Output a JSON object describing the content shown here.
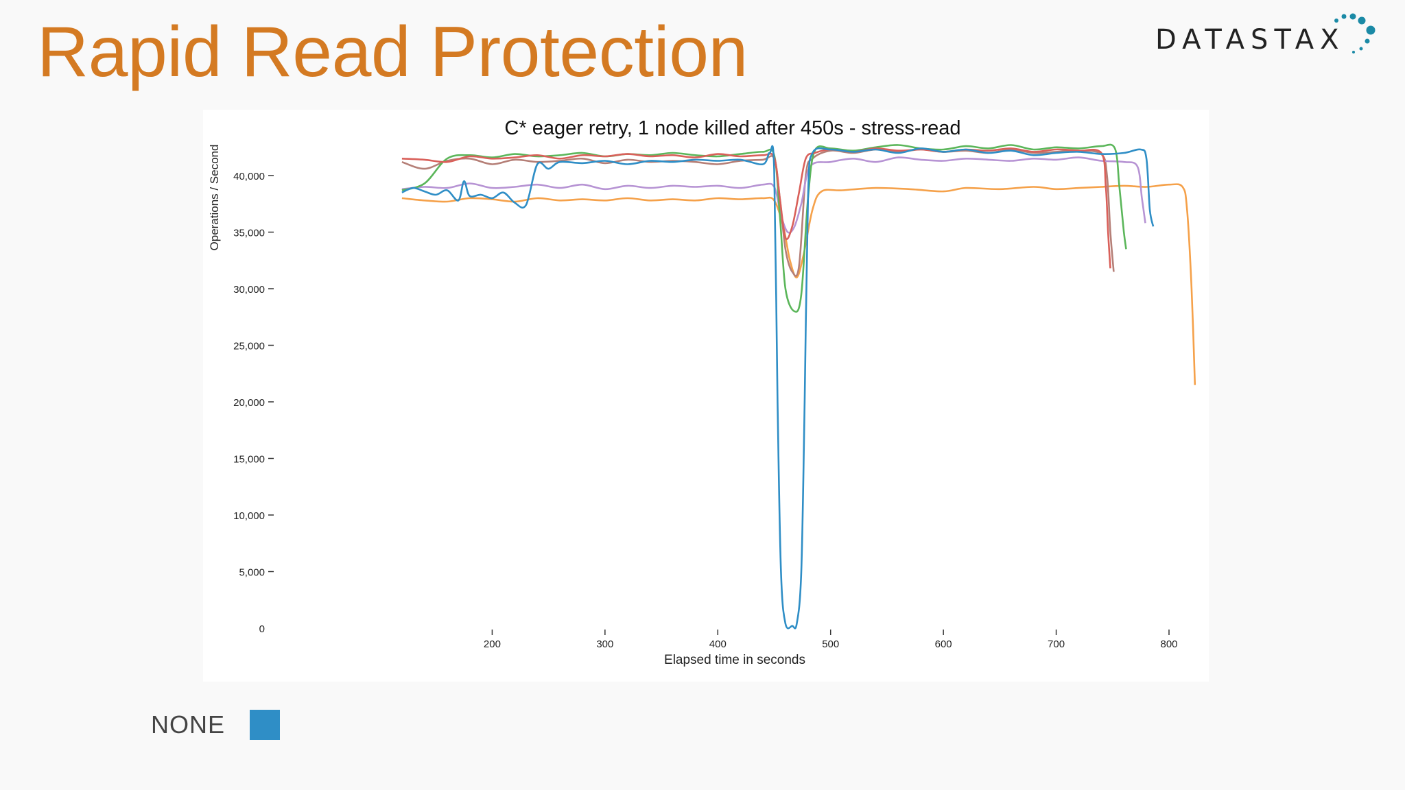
{
  "slide": {
    "title": "Rapid Read Protection"
  },
  "logo": {
    "text": "DATASTAX",
    "accent_color": "#1b8aa6"
  },
  "legend": {
    "label": "NONE",
    "color": "#2f8ec6"
  },
  "chart_data": {
    "type": "line",
    "title": "C* eager retry, 1 node killed after 450s - stress-read",
    "xlabel": "Elapsed time in seconds",
    "ylabel": "Operations / Second",
    "xlim": [
      120,
      830
    ],
    "ylim": [
      0,
      43500
    ],
    "x_ticks": [
      200,
      300,
      400,
      500,
      600,
      700,
      800
    ],
    "y_ticks": [
      0,
      5000,
      10000,
      15000,
      20000,
      25000,
      30000,
      35000,
      40000
    ],
    "x_tick_labels": [
      "200",
      "300",
      "400",
      "500",
      "600",
      "700",
      "800"
    ],
    "y_tick_labels": [
      "0",
      "5,000",
      "10,000",
      "15,000",
      "20,000",
      "25,000",
      "30,000",
      "35,000",
      "40,000"
    ],
    "grid": false,
    "series": [
      {
        "color": "#f5a14a",
        "points": [
          [
            120,
            38000
          ],
          [
            140,
            37800
          ],
          [
            160,
            37700
          ],
          [
            180,
            38000
          ],
          [
            200,
            37900
          ],
          [
            220,
            37700
          ],
          [
            240,
            38000
          ],
          [
            260,
            37800
          ],
          [
            280,
            37900
          ],
          [
            300,
            37800
          ],
          [
            320,
            38000
          ],
          [
            340,
            37800
          ],
          [
            360,
            37900
          ],
          [
            380,
            37800
          ],
          [
            400,
            38000
          ],
          [
            420,
            37900
          ],
          [
            440,
            38000
          ],
          [
            450,
            37800
          ],
          [
            458,
            35500
          ],
          [
            464,
            32500
          ],
          [
            470,
            31000
          ],
          [
            476,
            33000
          ],
          [
            484,
            37000
          ],
          [
            492,
            38600
          ],
          [
            510,
            38700
          ],
          [
            540,
            38900
          ],
          [
            570,
            38800
          ],
          [
            600,
            38600
          ],
          [
            620,
            38900
          ],
          [
            650,
            38800
          ],
          [
            680,
            39000
          ],
          [
            700,
            38800
          ],
          [
            720,
            38900
          ],
          [
            740,
            39000
          ],
          [
            760,
            39100
          ],
          [
            780,
            39000
          ],
          [
            800,
            39200
          ],
          [
            812,
            39000
          ],
          [
            816,
            37000
          ],
          [
            820,
            30000
          ],
          [
            823,
            21500
          ]
        ]
      },
      {
        "color": "#b57f77",
        "points": [
          [
            120,
            41200
          ],
          [
            140,
            40600
          ],
          [
            160,
            41300
          ],
          [
            180,
            41500
          ],
          [
            200,
            41000
          ],
          [
            220,
            41400
          ],
          [
            240,
            41200
          ],
          [
            260,
            41300
          ],
          [
            280,
            41500
          ],
          [
            300,
            41100
          ],
          [
            320,
            41400
          ],
          [
            340,
            41200
          ],
          [
            360,
            41300
          ],
          [
            380,
            41200
          ],
          [
            400,
            41000
          ],
          [
            420,
            41300
          ],
          [
            440,
            41400
          ],
          [
            450,
            41500
          ],
          [
            455,
            38000
          ],
          [
            460,
            33500
          ],
          [
            466,
            31500
          ],
          [
            472,
            32000
          ],
          [
            478,
            40000
          ],
          [
            484,
            41500
          ],
          [
            500,
            42200
          ],
          [
            520,
            42000
          ],
          [
            540,
            42300
          ],
          [
            560,
            42100
          ],
          [
            580,
            42300
          ],
          [
            600,
            42100
          ],
          [
            620,
            42200
          ],
          [
            640,
            42000
          ],
          [
            660,
            42300
          ],
          [
            680,
            42000
          ],
          [
            700,
            42100
          ],
          [
            720,
            42200
          ],
          [
            740,
            41900
          ],
          [
            745,
            40000
          ],
          [
            748,
            35000
          ],
          [
            751,
            31500
          ]
        ]
      },
      {
        "color": "#b794d4",
        "points": [
          [
            120,
            38800
          ],
          [
            140,
            39000
          ],
          [
            160,
            38900
          ],
          [
            180,
            39300
          ],
          [
            200,
            38900
          ],
          [
            220,
            39000
          ],
          [
            240,
            39200
          ],
          [
            260,
            38900
          ],
          [
            280,
            39200
          ],
          [
            300,
            38800
          ],
          [
            320,
            39100
          ],
          [
            340,
            38900
          ],
          [
            360,
            39100
          ],
          [
            380,
            39000
          ],
          [
            400,
            39100
          ],
          [
            420,
            38900
          ],
          [
            440,
            39200
          ],
          [
            450,
            39000
          ],
          [
            456,
            36500
          ],
          [
            462,
            35000
          ],
          [
            468,
            35500
          ],
          [
            474,
            37500
          ],
          [
            482,
            40800
          ],
          [
            500,
            41200
          ],
          [
            520,
            41500
          ],
          [
            540,
            41200
          ],
          [
            560,
            41600
          ],
          [
            580,
            41400
          ],
          [
            600,
            41300
          ],
          [
            620,
            41500
          ],
          [
            640,
            41400
          ],
          [
            660,
            41300
          ],
          [
            680,
            41500
          ],
          [
            700,
            41400
          ],
          [
            720,
            41600
          ],
          [
            740,
            41300
          ],
          [
            760,
            41200
          ],
          [
            772,
            40800
          ],
          [
            776,
            38000
          ],
          [
            779,
            35800
          ]
        ]
      },
      {
        "color": "#5bb65a",
        "points": [
          [
            120,
            38700
          ],
          [
            140,
            39300
          ],
          [
            160,
            41500
          ],
          [
            180,
            41800
          ],
          [
            200,
            41600
          ],
          [
            220,
            41900
          ],
          [
            240,
            41700
          ],
          [
            260,
            41800
          ],
          [
            280,
            42000
          ],
          [
            300,
            41700
          ],
          [
            320,
            41900
          ],
          [
            340,
            41800
          ],
          [
            360,
            42000
          ],
          [
            380,
            41800
          ],
          [
            400,
            41700
          ],
          [
            420,
            41900
          ],
          [
            440,
            42100
          ],
          [
            450,
            41800
          ],
          [
            455,
            36500
          ],
          [
            460,
            30000
          ],
          [
            468,
            28000
          ],
          [
            474,
            29500
          ],
          [
            480,
            38000
          ],
          [
            486,
            42200
          ],
          [
            500,
            42400
          ],
          [
            520,
            42200
          ],
          [
            540,
            42500
          ],
          [
            560,
            42700
          ],
          [
            580,
            42400
          ],
          [
            600,
            42300
          ],
          [
            620,
            42600
          ],
          [
            640,
            42400
          ],
          [
            660,
            42700
          ],
          [
            680,
            42300
          ],
          [
            700,
            42500
          ],
          [
            720,
            42400
          ],
          [
            740,
            42600
          ],
          [
            752,
            42400
          ],
          [
            756,
            39000
          ],
          [
            760,
            35000
          ],
          [
            762,
            33500
          ]
        ]
      },
      {
        "color": "#d9605a",
        "points": [
          [
            120,
            41500
          ],
          [
            140,
            41400
          ],
          [
            160,
            41200
          ],
          [
            180,
            41700
          ],
          [
            200,
            41500
          ],
          [
            220,
            41600
          ],
          [
            240,
            41800
          ],
          [
            260,
            41500
          ],
          [
            280,
            41800
          ],
          [
            300,
            41700
          ],
          [
            320,
            41900
          ],
          [
            340,
            41700
          ],
          [
            360,
            41800
          ],
          [
            380,
            41600
          ],
          [
            400,
            41900
          ],
          [
            420,
            41700
          ],
          [
            440,
            41800
          ],
          [
            450,
            41600
          ],
          [
            455,
            38000
          ],
          [
            460,
            34500
          ],
          [
            466,
            35500
          ],
          [
            472,
            38500
          ],
          [
            478,
            41500
          ],
          [
            486,
            42000
          ],
          [
            500,
            42300
          ],
          [
            520,
            42100
          ],
          [
            540,
            42400
          ],
          [
            560,
            42200
          ],
          [
            580,
            42300
          ],
          [
            600,
            42100
          ],
          [
            620,
            42300
          ],
          [
            640,
            42200
          ],
          [
            660,
            42400
          ],
          [
            680,
            42100
          ],
          [
            700,
            42300
          ],
          [
            720,
            42200
          ],
          [
            740,
            42000
          ],
          [
            744,
            39000
          ],
          [
            746,
            35000
          ],
          [
            748,
            31800
          ]
        ]
      },
      {
        "color": "#2f8ec6",
        "points": [
          [
            120,
            38500
          ],
          [
            130,
            38900
          ],
          [
            140,
            38600
          ],
          [
            150,
            38300
          ],
          [
            160,
            38700
          ],
          [
            170,
            37800
          ],
          [
            175,
            39500
          ],
          [
            180,
            38200
          ],
          [
            190,
            38300
          ],
          [
            200,
            38000
          ],
          [
            210,
            38500
          ],
          [
            220,
            37600
          ],
          [
            230,
            37400
          ],
          [
            240,
            41000
          ],
          [
            250,
            40600
          ],
          [
            260,
            41200
          ],
          [
            280,
            41100
          ],
          [
            300,
            41300
          ],
          [
            320,
            41000
          ],
          [
            340,
            41300
          ],
          [
            360,
            41200
          ],
          [
            380,
            41400
          ],
          [
            400,
            41300
          ],
          [
            420,
            41400
          ],
          [
            440,
            41000
          ],
          [
            446,
            42000
          ],
          [
            450,
            40500
          ],
          [
            453,
            20000
          ],
          [
            456,
            5000
          ],
          [
            460,
            400
          ],
          [
            466,
            200
          ],
          [
            470,
            400
          ],
          [
            474,
            5000
          ],
          [
            477,
            20000
          ],
          [
            480,
            38000
          ],
          [
            484,
            42000
          ],
          [
            500,
            42300
          ],
          [
            520,
            42100
          ],
          [
            540,
            42300
          ],
          [
            560,
            42000
          ],
          [
            580,
            42400
          ],
          [
            600,
            42100
          ],
          [
            620,
            42300
          ],
          [
            640,
            42000
          ],
          [
            660,
            42200
          ],
          [
            680,
            41800
          ],
          [
            700,
            42000
          ],
          [
            720,
            42100
          ],
          [
            740,
            41900
          ],
          [
            760,
            42000
          ],
          [
            775,
            42300
          ],
          [
            780,
            41500
          ],
          [
            783,
            37000
          ],
          [
            786,
            35500
          ]
        ]
      }
    ]
  }
}
